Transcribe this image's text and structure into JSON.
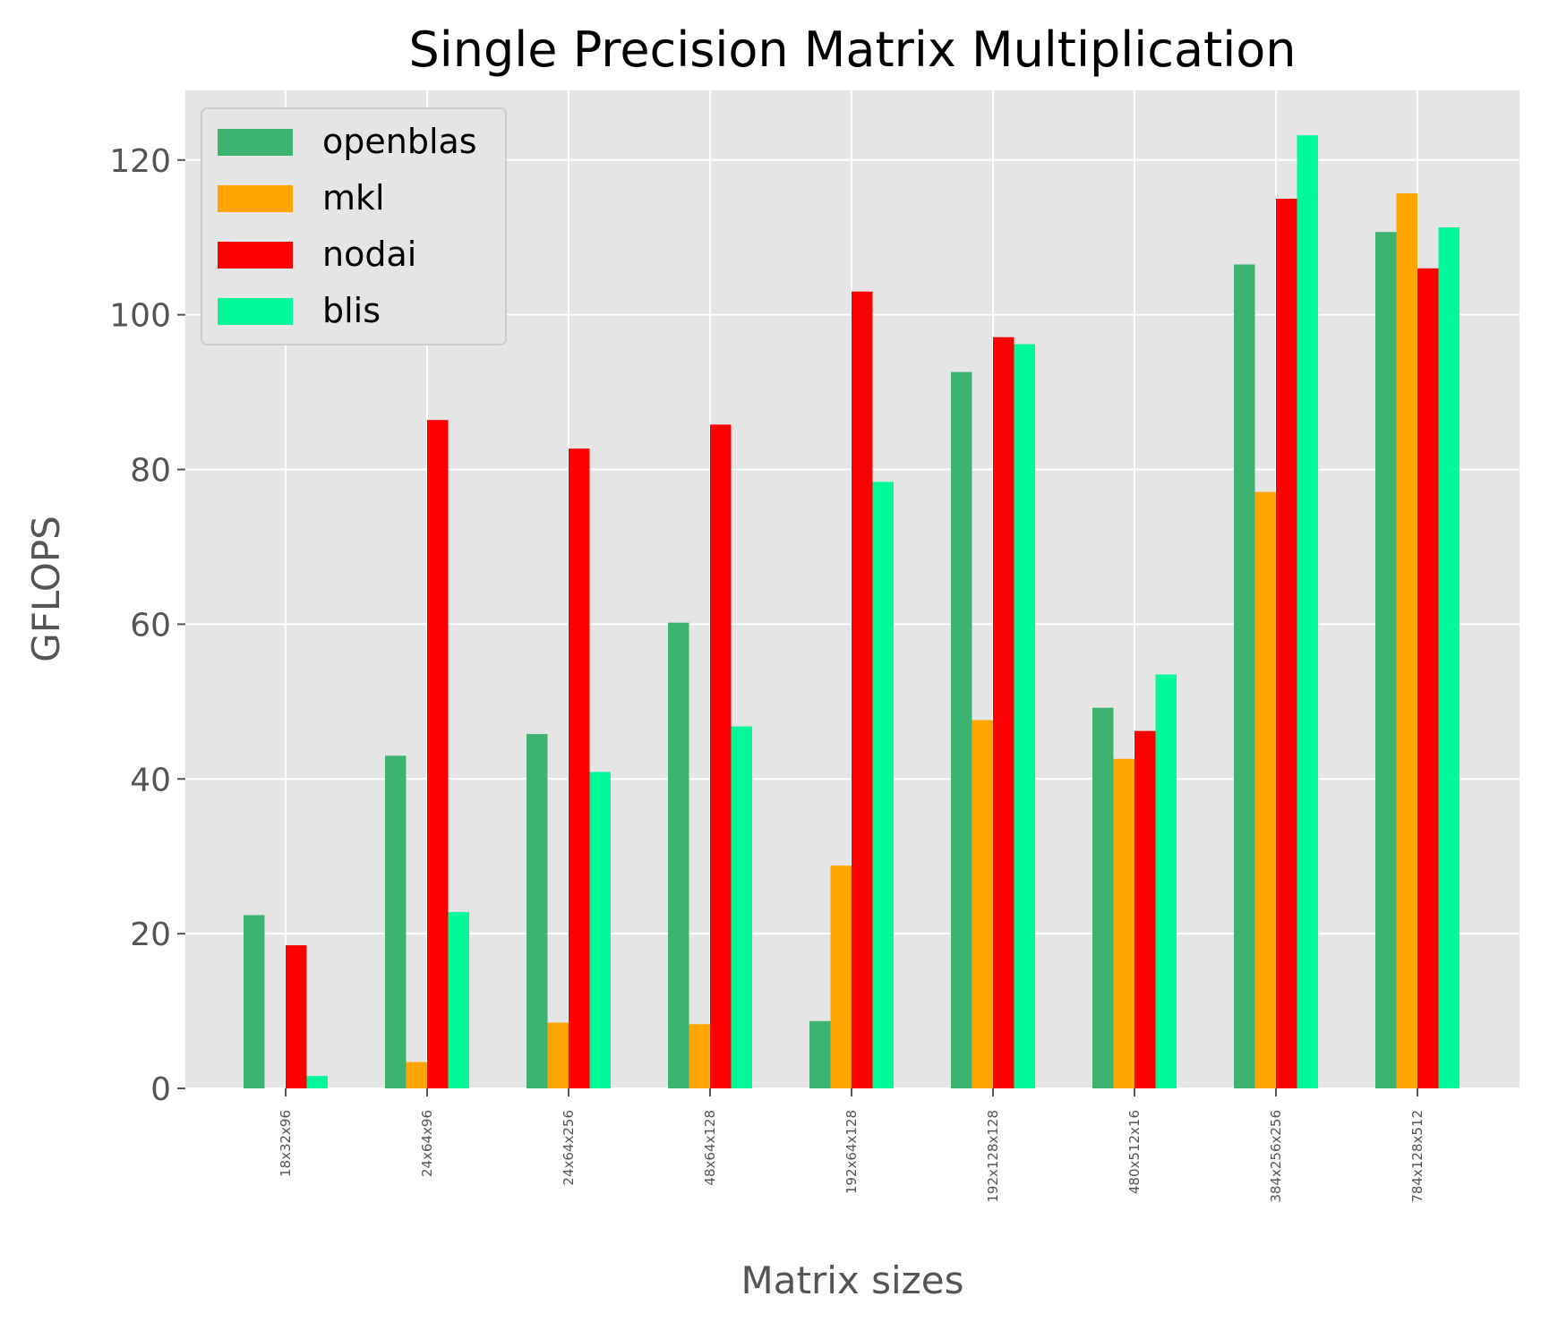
{
  "chart_data": {
    "type": "bar",
    "title": "Single Precision Matrix Multiplication",
    "xlabel": "Matrix sizes",
    "ylabel": "GFLOPS",
    "ylim": [
      0,
      129
    ],
    "yticks": [
      0,
      20,
      40,
      60,
      80,
      100,
      120
    ],
    "grid": true,
    "legend_position": "top-left",
    "categories": [
      "18x32x96",
      "24x64x96",
      "24x64x256",
      "48x64x128",
      "192x64x128",
      "192x128x128",
      "480x512x16",
      "384x256x256",
      "784x128x512"
    ],
    "series": [
      {
        "name": "openblas",
        "color": "#3cb371",
        "values": [
          22.4,
          43.0,
          45.8,
          60.2,
          8.7,
          92.6,
          49.2,
          106.5,
          110.7
        ]
      },
      {
        "name": "mkl",
        "color": "#ffa500",
        "values": [
          0,
          3.4,
          8.5,
          8.3,
          28.8,
          47.6,
          42.6,
          77.1,
          115.7
        ]
      },
      {
        "name": "nodai",
        "color": "#ff0000",
        "values": [
          18.5,
          86.4,
          82.7,
          85.8,
          103.0,
          97.1,
          46.2,
          115.0,
          106.0
        ]
      },
      {
        "name": "blis",
        "color": "#00fa9a",
        "values": [
          1.6,
          22.8,
          40.9,
          46.8,
          78.4,
          96.2,
          53.5,
          123.2,
          111.3
        ]
      }
    ]
  }
}
